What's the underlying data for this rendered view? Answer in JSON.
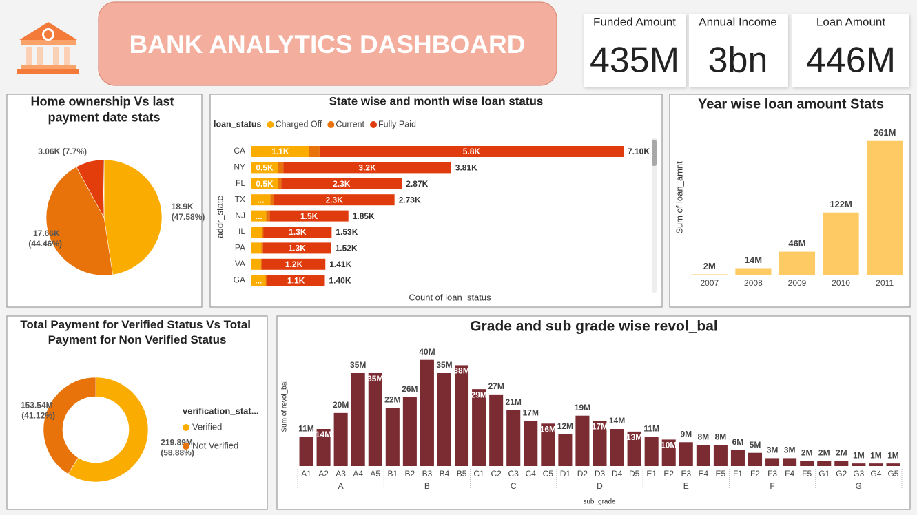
{
  "header": {
    "title": "BANK ANALYTICS DASHBOARD"
  },
  "kpis": [
    {
      "label": "Funded Amount",
      "value": "435M"
    },
    {
      "label": "Annual Income",
      "value": "3bn"
    },
    {
      "label": "Loan Amount",
      "value": "446M"
    }
  ],
  "chart_data": [
    {
      "type": "pie",
      "title": "Home ownership Vs last payment date stats",
      "values": [
        18900,
        17660,
        3060,
        100
      ],
      "value_labels": [
        "18.9K (47.58%)",
        "17.66K (44.46%)",
        "3.06K (7.7%)",
        null
      ],
      "colors": [
        "#fbac00",
        "#e8730a",
        "#e23d0a",
        "#b8322a"
      ]
    },
    {
      "type": "stacked_bar_h",
      "title": "State wise and month wise loan status",
      "legend_title": "loan_status",
      "categories": [
        "CA",
        "NY",
        "FL",
        "TX",
        "NJ",
        "IL",
        "PA",
        "VA",
        "GA"
      ],
      "series": [
        {
          "name": "Charged Off",
          "color": "#fbac00",
          "values": [
            1100,
            500,
            500,
            360,
            280,
            200,
            190,
            180,
            270
          ],
          "value_labels": [
            "1.1K",
            "0.5K",
            "0.5K",
            "...",
            "...",
            null,
            null,
            null,
            "..."
          ]
        },
        {
          "name": "Current",
          "color": "#e8730c",
          "values": [
            200,
            110,
            70,
            70,
            70,
            30,
            30,
            30,
            30
          ]
        },
        {
          "name": "Fully Paid",
          "color": "#e03b0c",
          "values": [
            5800,
            3200,
            2300,
            2300,
            1500,
            1300,
            1300,
            1200,
            1100
          ],
          "value_labels": [
            "5.8K",
            "3.2K",
            "2.3K",
            "2.3K",
            "1.5K",
            "1.3K",
            "1.3K",
            "1.2K",
            "1.1K"
          ]
        }
      ],
      "total_labels": [
        "7.10K",
        "3.81K",
        "2.87K",
        "2.73K",
        "1.85K",
        "1.53K",
        "1.52K",
        "1.41K",
        "1.40K"
      ],
      "xlabel": "Count of loan_status",
      "ylabel": "addr_state",
      "xlim": [
        0,
        7100
      ]
    },
    {
      "type": "bar",
      "title": "Year wise loan amount Stats",
      "categories": [
        "2007",
        "2008",
        "2009",
        "2010",
        "2011"
      ],
      "values": [
        2,
        14,
        46,
        122,
        261
      ],
      "value_labels": [
        "2M",
        "14M",
        "46M",
        "122M",
        "261M"
      ],
      "color": "#fdca63",
      "ylabel": "Sum of loan_amnt",
      "ylim": [
        0,
        270
      ]
    },
    {
      "type": "donut",
      "title": "Total Payment for Verified Status Vs Total Payment for Non Verified Status",
      "legend_title": "verification_stat...",
      "categories": [
        "Verified",
        "Not Verified"
      ],
      "values": [
        219.89,
        153.54
      ],
      "value_labels": [
        "219.89M (58.88%)",
        "153.54M (41.12%)"
      ],
      "colors": [
        "#fbac00",
        "#e8730a"
      ]
    },
    {
      "type": "bar",
      "title": "Grade and sub grade wise revol_bal",
      "categories": [
        "A1",
        "A2",
        "A3",
        "A4",
        "A5",
        "B1",
        "B2",
        "B3",
        "B4",
        "B5",
        "C1",
        "C2",
        "C3",
        "C4",
        "C5",
        "D1",
        "D2",
        "D3",
        "D4",
        "D5",
        "E1",
        "E2",
        "E3",
        "E4",
        "E5",
        "F1",
        "F2",
        "F3",
        "F4",
        "F5",
        "G1",
        "G2",
        "G3",
        "G4",
        "G5"
      ],
      "groups": [
        "A",
        "B",
        "C",
        "D",
        "E",
        "F",
        "G"
      ],
      "values": [
        11,
        14,
        20,
        35,
        35,
        22,
        26,
        40,
        35,
        38,
        29,
        27,
        21,
        17,
        16,
        12,
        19,
        17,
        14,
        13,
        11,
        10,
        9,
        8,
        8,
        6,
        5,
        3,
        3,
        2,
        2,
        2,
        1,
        1,
        1
      ],
      "value_labels": [
        "11M",
        "14M",
        "20M",
        "35M",
        "35M",
        "22M",
        "26M",
        "40M",
        "35M",
        "38M",
        "29M",
        "27M",
        "21M",
        "17M",
        "16M",
        "12M",
        "19M",
        "17M",
        "14M",
        "13M",
        "11M",
        "10M",
        "9M",
        "8M",
        "8M",
        "6M",
        "5M",
        "3M",
        "3M",
        "2M",
        "2M",
        "2M",
        "1M",
        "1M",
        "1M"
      ],
      "color": "#7b2c33",
      "xlabel": "sub_grade",
      "ylabel": "Sum of revol_bal",
      "ylim": [
        0,
        42
      ]
    }
  ]
}
